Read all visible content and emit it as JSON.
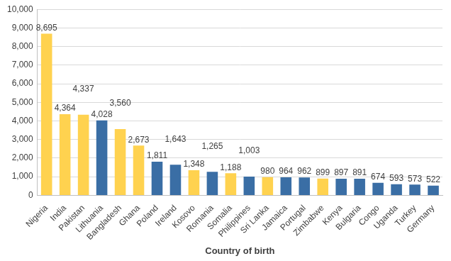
{
  "chart_data": {
    "type": "bar",
    "x_label": "Country of birth",
    "categories": [
      "Nigeria",
      "India",
      "Pakistan",
      "Lithuania",
      "Bangladesh",
      "Ghana",
      "Poland",
      "Ireland",
      "Kosovo",
      "Romania",
      "Somalia",
      "Philippines",
      "Sri Lanka",
      "Jamaica",
      "Portugal",
      "Zimbabwe",
      "Kenya",
      "Bulgaria",
      "Congo",
      "Uganda",
      "Turkey",
      "Germany"
    ],
    "values": [
      8695,
      4364,
      4337,
      4028,
      3560,
      2673,
      1811,
      1643,
      1348,
      1265,
      1188,
      1003,
      980,
      964,
      962,
      899,
      897,
      891,
      674,
      593,
      573,
      522
    ],
    "value_labels": [
      "8,695",
      "4,364",
      "4,337",
      "4,028",
      "3,560",
      "2,673",
      "1,811",
      "1,643",
      "1,348",
      "1,265",
      "1,188",
      "1,003",
      "980",
      "964",
      "962",
      "899",
      "897",
      "891",
      "674",
      "593",
      "573",
      "522"
    ],
    "colors": [
      "#ffd24f",
      "#ffd24f",
      "#ffd24f",
      "#3a6ea5",
      "#ffd24f",
      "#ffd24f",
      "#3a6ea5",
      "#3a6ea5",
      "#ffd24f",
      "#3a6ea5",
      "#ffd24f",
      "#3a6ea5",
      "#ffd24f",
      "#3a6ea5",
      "#3a6ea5",
      "#ffd24f",
      "#3a6ea5",
      "#3a6ea5",
      "#3a6ea5",
      "#3a6ea5",
      "#3a6ea5",
      "#3a6ea5"
    ],
    "ylim": [
      0,
      10000
    ],
    "yticks": [
      0,
      {
        "value": 1000,
        "label": "1,000"
      },
      {
        "value": 2000,
        "label": "2,000"
      },
      {
        "value": 3000,
        "label": "3,000"
      },
      {
        "value": 4000,
        "label": "4,000"
      },
      {
        "value": 5000,
        "label": "5,000"
      },
      {
        "value": 6000,
        "label": "6,000"
      },
      {
        "value": 7000,
        "label": "7,000"
      },
      {
        "value": 8000,
        "label": "8,000"
      },
      {
        "value": 9000,
        "label": "9,000"
      },
      {
        "value": 10000,
        "label": "10,000"
      }
    ],
    "grid": true,
    "data_labels": true
  }
}
